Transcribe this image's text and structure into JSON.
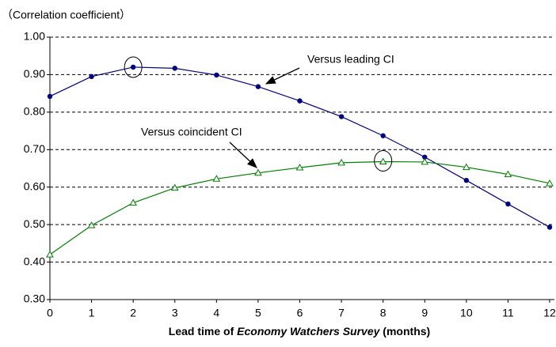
{
  "chart_data": {
    "type": "line",
    "y_axis_label": "（Correlation coefficient）",
    "x_axis_label": [
      "Lead time of ",
      "Economy Watchers Survey",
      " (months)"
    ],
    "annotations": [
      "Versus leading CI",
      "Versus coincident CI"
    ],
    "x": [
      0,
      1,
      2,
      3,
      4,
      5,
      6,
      7,
      8,
      9,
      10,
      11,
      12
    ],
    "series": [
      {
        "name": "Versus leading CI",
        "color": "#000080",
        "marker": "circle",
        "values": [
          0.842,
          0.895,
          0.92,
          0.917,
          0.899,
          0.868,
          0.83,
          0.788,
          0.737,
          0.68,
          0.618,
          0.555,
          0.493
        ]
      },
      {
        "name": "Versus coincident CI",
        "color": "#008000",
        "marker": "triangle",
        "values": [
          0.42,
          0.498,
          0.558,
          0.598,
          0.622,
          0.638,
          0.652,
          0.665,
          0.668,
          0.667,
          0.653,
          0.634,
          0.61
        ]
      }
    ],
    "xlim": [
      0,
      12
    ],
    "xticks": [
      0,
      1,
      2,
      3,
      4,
      5,
      6,
      7,
      8,
      9,
      10,
      11,
      12
    ],
    "ylim": [
      0.3,
      1
    ],
    "yticks": [
      {
        "value": 0.3,
        "label": "0.30"
      },
      {
        "value": 0.4,
        "label": "0.40"
      },
      {
        "value": 0.5,
        "label": "0.50"
      },
      {
        "value": 0.6,
        "label": "0.60"
      },
      {
        "value": 0.7,
        "label": "0.70"
      },
      {
        "value": 0.8,
        "label": "0.80"
      },
      {
        "value": 0.9,
        "label": "0.90"
      },
      {
        "value": 1,
        "label": "1.00"
      }
    ],
    "grid": true
  }
}
